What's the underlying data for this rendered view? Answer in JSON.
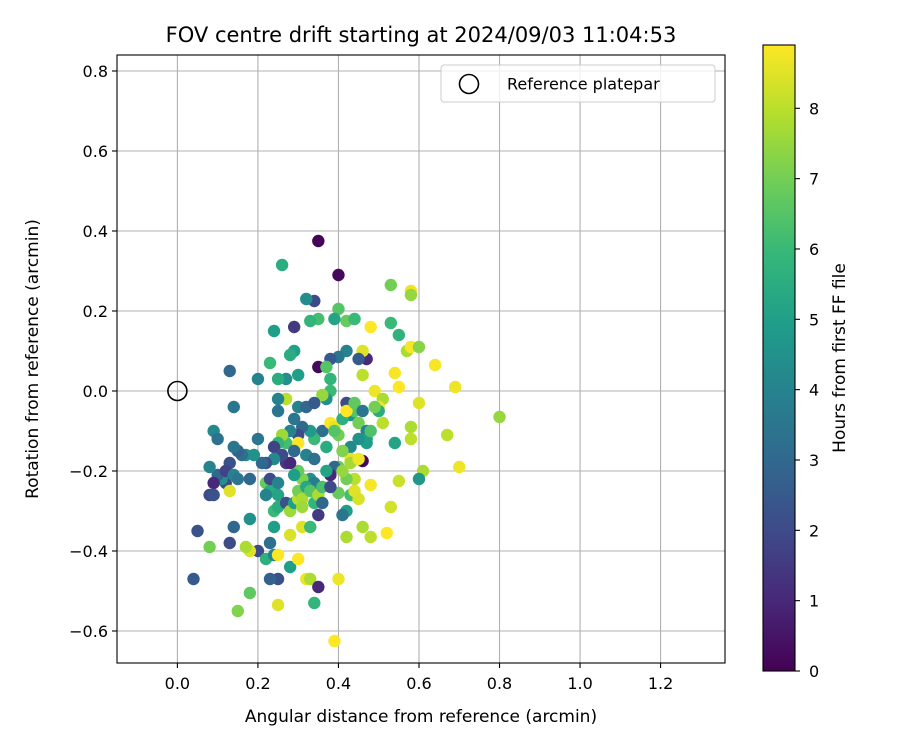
{
  "chart_data": {
    "type": "scatter",
    "title": "FOV centre drift starting at 2024/09/03 11:04:53",
    "xlabel": "Angular distance from reference (arcmin)",
    "ylabel": "Rotation from reference (arcmin)",
    "xlim": [
      -0.15,
      1.36
    ],
    "ylim": [
      -0.68,
      0.84
    ],
    "x_ticks": [
      0.0,
      0.2,
      0.4,
      0.6,
      0.8,
      1.0,
      1.2
    ],
    "x_tick_labels": [
      "0.0",
      "0.2",
      "0.4",
      "0.6",
      "0.8",
      "1.0",
      "1.2"
    ],
    "y_ticks": [
      -0.6,
      -0.4,
      -0.2,
      0.0,
      0.2,
      0.4,
      0.6,
      0.8
    ],
    "y_tick_labels": [
      "−0.6",
      "−0.4",
      "−0.2",
      "0.0",
      "0.2",
      "0.4",
      "0.6",
      "0.8"
    ],
    "grid": true,
    "colormap": "viridis",
    "colorbar": {
      "label": "Hours from first FF file",
      "min": 0,
      "max": 8.9,
      "ticks": [
        0,
        1,
        2,
        3,
        4,
        5,
        6,
        7,
        8
      ],
      "tick_labels": [
        "0",
        "1",
        "2",
        "3",
        "4",
        "5",
        "6",
        "7",
        "8"
      ]
    },
    "legend": {
      "position": "top-right",
      "entries": [
        {
          "label": "Reference platepar",
          "marker": "open-circle"
        }
      ]
    },
    "reference_point": {
      "x": 0.0,
      "y": 0.0
    },
    "points": [
      [
        0.35,
        0.375,
        0.1
      ],
      [
        0.4,
        0.29,
        0.2
      ],
      [
        0.29,
        0.16,
        1.5
      ],
      [
        0.34,
        0.225,
        2.0
      ],
      [
        0.32,
        0.23,
        4.3
      ],
      [
        0.26,
        0.315,
        5.5
      ],
      [
        0.24,
        0.15,
        5.0
      ],
      [
        0.4,
        0.205,
        6.5
      ],
      [
        0.42,
        0.175,
        6.8
      ],
      [
        0.44,
        0.18,
        6.0
      ],
      [
        0.39,
        0.18,
        5.2
      ],
      [
        0.35,
        0.18,
        6.2
      ],
      [
        0.33,
        0.175,
        5.8
      ],
      [
        0.53,
        0.265,
        7.0
      ],
      [
        0.58,
        0.25,
        8.7
      ],
      [
        0.58,
        0.24,
        7.5
      ],
      [
        0.53,
        0.17,
        6.0
      ],
      [
        0.55,
        0.14,
        5.7
      ],
      [
        0.48,
        0.16,
        8.9
      ],
      [
        0.47,
        0.08,
        1.0
      ],
      [
        0.46,
        0.1,
        8.5
      ],
      [
        0.45,
        0.08,
        2.5
      ],
      [
        0.42,
        0.1,
        4.0
      ],
      [
        0.4,
        0.085,
        3.5
      ],
      [
        0.38,
        0.08,
        2.5
      ],
      [
        0.35,
        0.06,
        0.2
      ],
      [
        0.37,
        0.06,
        6.5
      ],
      [
        0.29,
        0.1,
        5.0
      ],
      [
        0.28,
        0.09,
        5.5
      ],
      [
        0.27,
        0.03,
        4.5
      ],
      [
        0.25,
        0.03,
        5.5
      ],
      [
        0.2,
        0.03,
        4.0
      ],
      [
        0.23,
        0.07,
        6.0
      ],
      [
        0.13,
        0.05,
        3.0
      ],
      [
        0.57,
        0.1,
        7.8
      ],
      [
        0.58,
        0.11,
        8.8
      ],
      [
        0.6,
        0.11,
        7.3
      ],
      [
        0.64,
        0.065,
        8.8
      ],
      [
        0.69,
        0.01,
        8.7
      ],
      [
        0.8,
        -0.065,
        7.5
      ],
      [
        0.54,
        0.045,
        8.8
      ],
      [
        0.55,
        0.01,
        8.9
      ],
      [
        0.49,
        0.0,
        8.7
      ],
      [
        0.51,
        -0.02,
        7.8
      ],
      [
        0.6,
        -0.03,
        8.5
      ],
      [
        0.46,
        0.04,
        8.0
      ],
      [
        0.38,
        0.03,
        5.8
      ],
      [
        0.38,
        0.0,
        6.0
      ],
      [
        0.37,
        -0.02,
        4.5
      ],
      [
        0.36,
        -0.01,
        7.5
      ],
      [
        0.3,
        0.04,
        5.0
      ],
      [
        0.3,
        -0.04,
        4.0
      ],
      [
        0.27,
        -0.02,
        8.0
      ],
      [
        0.25,
        -0.05,
        3.5
      ],
      [
        0.25,
        -0.02,
        4.0
      ],
      [
        0.32,
        -0.04,
        3.0
      ],
      [
        0.34,
        -0.03,
        2.5
      ],
      [
        0.42,
        -0.03,
        2.0
      ],
      [
        0.43,
        -0.06,
        4.5
      ],
      [
        0.44,
        -0.05,
        6.5
      ],
      [
        0.45,
        -0.08,
        7.0
      ],
      [
        0.5,
        -0.04,
        8.7
      ],
      [
        0.51,
        -0.08,
        8.0
      ],
      [
        0.58,
        -0.09,
        7.8
      ],
      [
        0.58,
        -0.12,
        8.0
      ],
      [
        0.67,
        -0.11,
        8.0
      ],
      [
        0.54,
        -0.13,
        5.2
      ],
      [
        0.61,
        -0.2,
        7.8
      ],
      [
        0.6,
        -0.22,
        4.7
      ],
      [
        0.7,
        -0.19,
        8.7
      ],
      [
        0.55,
        -0.225,
        8.2
      ],
      [
        0.53,
        -0.29,
        8.3
      ],
      [
        0.52,
        -0.355,
        8.9
      ],
      [
        0.48,
        -0.365,
        8.0
      ],
      [
        0.42,
        -0.365,
        7.8
      ],
      [
        0.48,
        -0.235,
        8.8
      ],
      [
        0.46,
        -0.175,
        0.2
      ],
      [
        0.47,
        -0.1,
        4.0
      ],
      [
        0.47,
        -0.12,
        5.0
      ],
      [
        0.43,
        -0.14,
        4.2
      ],
      [
        0.43,
        -0.17,
        8.6
      ],
      [
        0.41,
        -0.15,
        7.2
      ],
      [
        0.4,
        -0.19,
        6.8
      ],
      [
        0.39,
        -0.19,
        3.0
      ],
      [
        0.38,
        -0.21,
        1.0
      ],
      [
        0.37,
        -0.14,
        5.5
      ],
      [
        0.36,
        -0.1,
        3.2
      ],
      [
        0.38,
        -0.08,
        8.9
      ],
      [
        0.39,
        -0.09,
        8.6
      ],
      [
        0.4,
        -0.11,
        7.0
      ],
      [
        0.34,
        -0.12,
        6.0
      ],
      [
        0.33,
        -0.1,
        4.8
      ],
      [
        0.31,
        -0.09,
        3.0
      ],
      [
        0.3,
        -0.11,
        2.0
      ],
      [
        0.3,
        -0.13,
        8.9
      ],
      [
        0.29,
        -0.07,
        3.5
      ],
      [
        0.28,
        -0.1,
        4.0
      ],
      [
        0.27,
        -0.13,
        6.2
      ],
      [
        0.26,
        -0.11,
        7.6
      ],
      [
        0.25,
        -0.13,
        5.8
      ],
      [
        0.24,
        -0.14,
        1.8
      ],
      [
        0.27,
        -0.18,
        1.5
      ],
      [
        0.29,
        -0.15,
        3.0
      ],
      [
        0.32,
        -0.16,
        4.0
      ],
      [
        0.34,
        -0.17,
        3.3
      ],
      [
        0.33,
        -0.22,
        4.5
      ],
      [
        0.34,
        -0.23,
        3.8
      ],
      [
        0.31,
        -0.22,
        7.2
      ],
      [
        0.3,
        -0.2,
        6.8
      ],
      [
        0.29,
        -0.21,
        5.0
      ],
      [
        0.28,
        -0.18,
        1.0
      ],
      [
        0.26,
        -0.16,
        2.0
      ],
      [
        0.24,
        -0.17,
        4.2
      ],
      [
        0.22,
        -0.18,
        2.3
      ],
      [
        0.21,
        -0.18,
        3.0
      ],
      [
        0.2,
        -0.12,
        3.5
      ],
      [
        0.19,
        -0.16,
        4.5
      ],
      [
        0.17,
        -0.16,
        4.5
      ],
      [
        0.16,
        -0.16,
        3.2
      ],
      [
        0.15,
        -0.15,
        2.8
      ],
      [
        0.14,
        -0.14,
        3.5
      ],
      [
        0.13,
        -0.18,
        2.2
      ],
      [
        0.12,
        -0.23,
        2.0
      ],
      [
        0.11,
        -0.22,
        4.5
      ],
      [
        0.1,
        -0.21,
        3.0
      ],
      [
        0.09,
        -0.23,
        1.0
      ],
      [
        0.08,
        -0.26,
        2.0
      ],
      [
        0.09,
        -0.26,
        2.2
      ],
      [
        0.08,
        -0.19,
        4.0
      ],
      [
        0.09,
        -0.1,
        4.2
      ],
      [
        0.1,
        -0.12,
        3.3
      ],
      [
        0.14,
        -0.04,
        3.5
      ],
      [
        0.12,
        -0.2,
        1.8
      ],
      [
        0.13,
        -0.25,
        8.5
      ],
      [
        0.14,
        -0.21,
        4.0
      ],
      [
        0.15,
        -0.22,
        3.5
      ],
      [
        0.18,
        -0.22,
        3.0
      ],
      [
        0.22,
        -0.23,
        6.8
      ],
      [
        0.23,
        -0.25,
        5.5
      ],
      [
        0.22,
        -0.26,
        4.0
      ],
      [
        0.25,
        -0.26,
        5.2
      ],
      [
        0.23,
        -0.22,
        2.0
      ],
      [
        0.25,
        -0.23,
        4.0
      ],
      [
        0.24,
        -0.3,
        6.0
      ],
      [
        0.25,
        -0.29,
        5.5
      ],
      [
        0.27,
        -0.28,
        2.2
      ],
      [
        0.28,
        -0.3,
        7.6
      ],
      [
        0.29,
        -0.28,
        5.0
      ],
      [
        0.3,
        -0.27,
        8.0
      ],
      [
        0.3,
        -0.25,
        7.0
      ],
      [
        0.31,
        -0.27,
        7.8
      ],
      [
        0.32,
        -0.24,
        5.3
      ],
      [
        0.33,
        -0.25,
        6.5
      ],
      [
        0.34,
        -0.28,
        5.8
      ],
      [
        0.35,
        -0.26,
        7.8
      ],
      [
        0.36,
        -0.24,
        6.3
      ],
      [
        0.31,
        -0.29,
        7.6
      ],
      [
        0.31,
        -0.34,
        8.5
      ],
      [
        0.33,
        -0.34,
        6.0
      ],
      [
        0.28,
        -0.36,
        8.4
      ],
      [
        0.24,
        -0.34,
        5.0
      ],
      [
        0.23,
        -0.38,
        3.2
      ],
      [
        0.2,
        -0.4,
        2.0
      ],
      [
        0.18,
        -0.4,
        8.5
      ],
      [
        0.17,
        -0.39,
        7.8
      ],
      [
        0.14,
        -0.34,
        3.0
      ],
      [
        0.13,
        -0.38,
        2.0
      ],
      [
        0.08,
        -0.39,
        7.0
      ],
      [
        0.05,
        -0.35,
        2.2
      ],
      [
        0.04,
        -0.47,
        2.5
      ],
      [
        0.15,
        -0.55,
        7.2
      ],
      [
        0.18,
        -0.32,
        4.5
      ],
      [
        0.22,
        -0.42,
        5.6
      ],
      [
        0.24,
        -0.41,
        4.0
      ],
      [
        0.25,
        -0.41,
        8.9
      ],
      [
        0.25,
        -0.47,
        2.2
      ],
      [
        0.23,
        -0.47,
        2.8
      ],
      [
        0.18,
        -0.505,
        6.7
      ],
      [
        0.25,
        -0.535,
        8.5
      ],
      [
        0.28,
        -0.44,
        5.0
      ],
      [
        0.3,
        -0.42,
        8.9
      ],
      [
        0.32,
        -0.47,
        8.7
      ],
      [
        0.33,
        -0.47,
        7.8
      ],
      [
        0.35,
        -0.49,
        1.0
      ],
      [
        0.34,
        -0.53,
        5.8
      ],
      [
        0.39,
        -0.625,
        8.9
      ],
      [
        0.4,
        -0.47,
        8.7
      ],
      [
        0.42,
        -0.3,
        5.0
      ],
      [
        0.41,
        -0.31,
        3.5
      ],
      [
        0.43,
        -0.26,
        6.2
      ],
      [
        0.44,
        -0.25,
        8.5
      ],
      [
        0.45,
        -0.27,
        8.4
      ],
      [
        0.44,
        -0.22,
        8.0
      ],
      [
        0.42,
        -0.22,
        7.0
      ],
      [
        0.41,
        -0.2,
        7.5
      ],
      [
        0.43,
        -0.18,
        7.7
      ],
      [
        0.45,
        -0.17,
        8.7
      ],
      [
        0.46,
        -0.34,
        7.8
      ],
      [
        0.4,
        -0.255,
        6.8
      ],
      [
        0.37,
        -0.2,
        5.2
      ],
      [
        0.38,
        -0.24,
        2.0
      ],
      [
        0.36,
        -0.28,
        3.0
      ],
      [
        0.35,
        -0.31,
        1.5
      ],
      [
        0.39,
        -0.1,
        6.5
      ],
      [
        0.41,
        -0.07,
        5.6
      ],
      [
        0.42,
        -0.05,
        8.9
      ],
      [
        0.44,
        -0.03,
        6.7
      ],
      [
        0.46,
        -0.05,
        3.5
      ],
      [
        0.5,
        -0.05,
        5.5
      ],
      [
        0.48,
        -0.1,
        6.4
      ],
      [
        0.47,
        -0.13,
        5.0
      ],
      [
        0.45,
        -0.12,
        4.5
      ],
      [
        0.49,
        -0.04,
        7.0
      ]
    ]
  }
}
